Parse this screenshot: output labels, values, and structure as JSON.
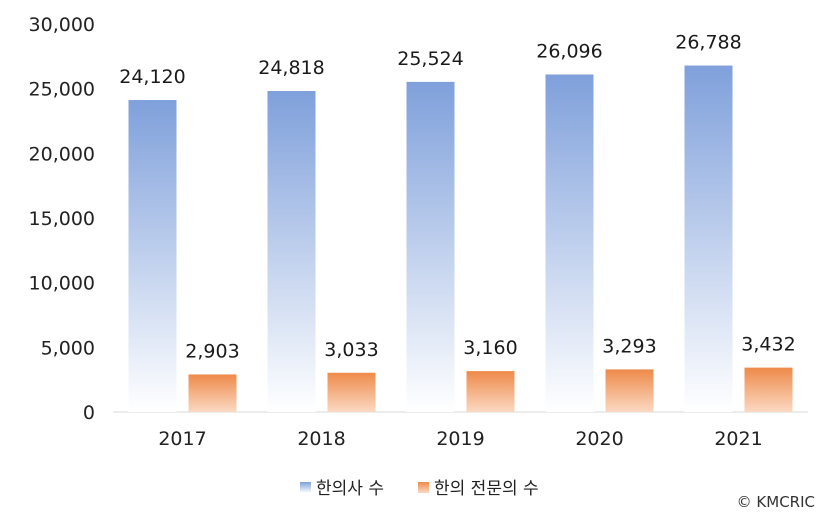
{
  "chart_data": {
    "type": "bar",
    "categories": [
      "2017",
      "2018",
      "2019",
      "2020",
      "2021"
    ],
    "series": [
      {
        "name": "한의사 수",
        "values": [
          24120,
          24818,
          25524,
          26096,
          26788
        ],
        "labels": [
          "24,120",
          "24,818",
          "25,524",
          "26,096",
          "26,788"
        ],
        "color_top": "#7fa0db",
        "color_bottom": "#ffffff"
      },
      {
        "name": "한의 전문의 수",
        "values": [
          2903,
          3033,
          3160,
          3293,
          3432
        ],
        "labels": [
          "2,903",
          "3,033",
          "3,160",
          "3,293",
          "3,432"
        ],
        "color_top": "#ee8a4a",
        "color_bottom": "#fbd9c3"
      }
    ],
    "yticks": [
      "0",
      "5,000",
      "10,000",
      "15,000",
      "20,000",
      "25,000",
      "30,000"
    ],
    "ylim": [
      0,
      30000
    ],
    "grid": false,
    "legend_position": "bottom-center"
  },
  "credit": "© KMCRIC"
}
